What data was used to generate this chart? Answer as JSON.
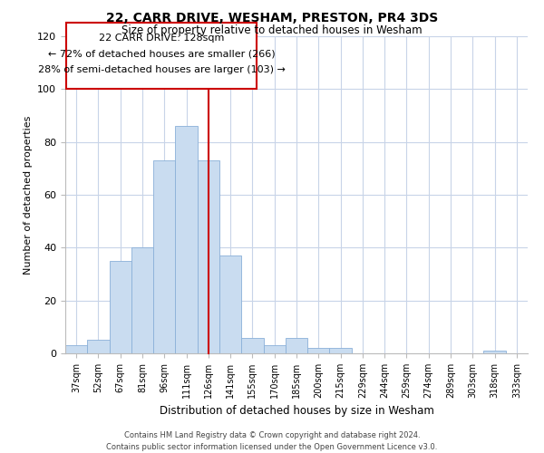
{
  "title1": "22, CARR DRIVE, WESHAM, PRESTON, PR4 3DS",
  "title2": "Size of property relative to detached houses in Wesham",
  "xlabel": "Distribution of detached houses by size in Wesham",
  "ylabel": "Number of detached properties",
  "bin_labels": [
    "37sqm",
    "52sqm",
    "67sqm",
    "81sqm",
    "96sqm",
    "111sqm",
    "126sqm",
    "141sqm",
    "155sqm",
    "170sqm",
    "185sqm",
    "200sqm",
    "215sqm",
    "229sqm",
    "244sqm",
    "259sqm",
    "274sqm",
    "289sqm",
    "303sqm",
    "318sqm",
    "333sqm"
  ],
  "bar_heights": [
    3,
    5,
    35,
    40,
    73,
    86,
    73,
    37,
    6,
    3,
    6,
    2,
    2,
    0,
    0,
    0,
    0,
    0,
    0,
    1,
    0
  ],
  "bar_color": "#c9dcf0",
  "bar_edge_color": "#8ab0d8",
  "vline_x": 6,
  "vline_color": "#cc0000",
  "ylim": [
    0,
    120
  ],
  "yticks": [
    0,
    20,
    40,
    60,
    80,
    100,
    120
  ],
  "annotation_title": "22 CARR DRIVE: 128sqm",
  "annotation_line1": "← 72% of detached houses are smaller (266)",
  "annotation_line2": "28% of semi-detached houses are larger (103) →",
  "footer1": "Contains HM Land Registry data © Crown copyright and database right 2024.",
  "footer2": "Contains public sector information licensed under the Open Government Licence v3.0.",
  "bg_color": "#ffffff",
  "grid_color": "#c8d4e8"
}
